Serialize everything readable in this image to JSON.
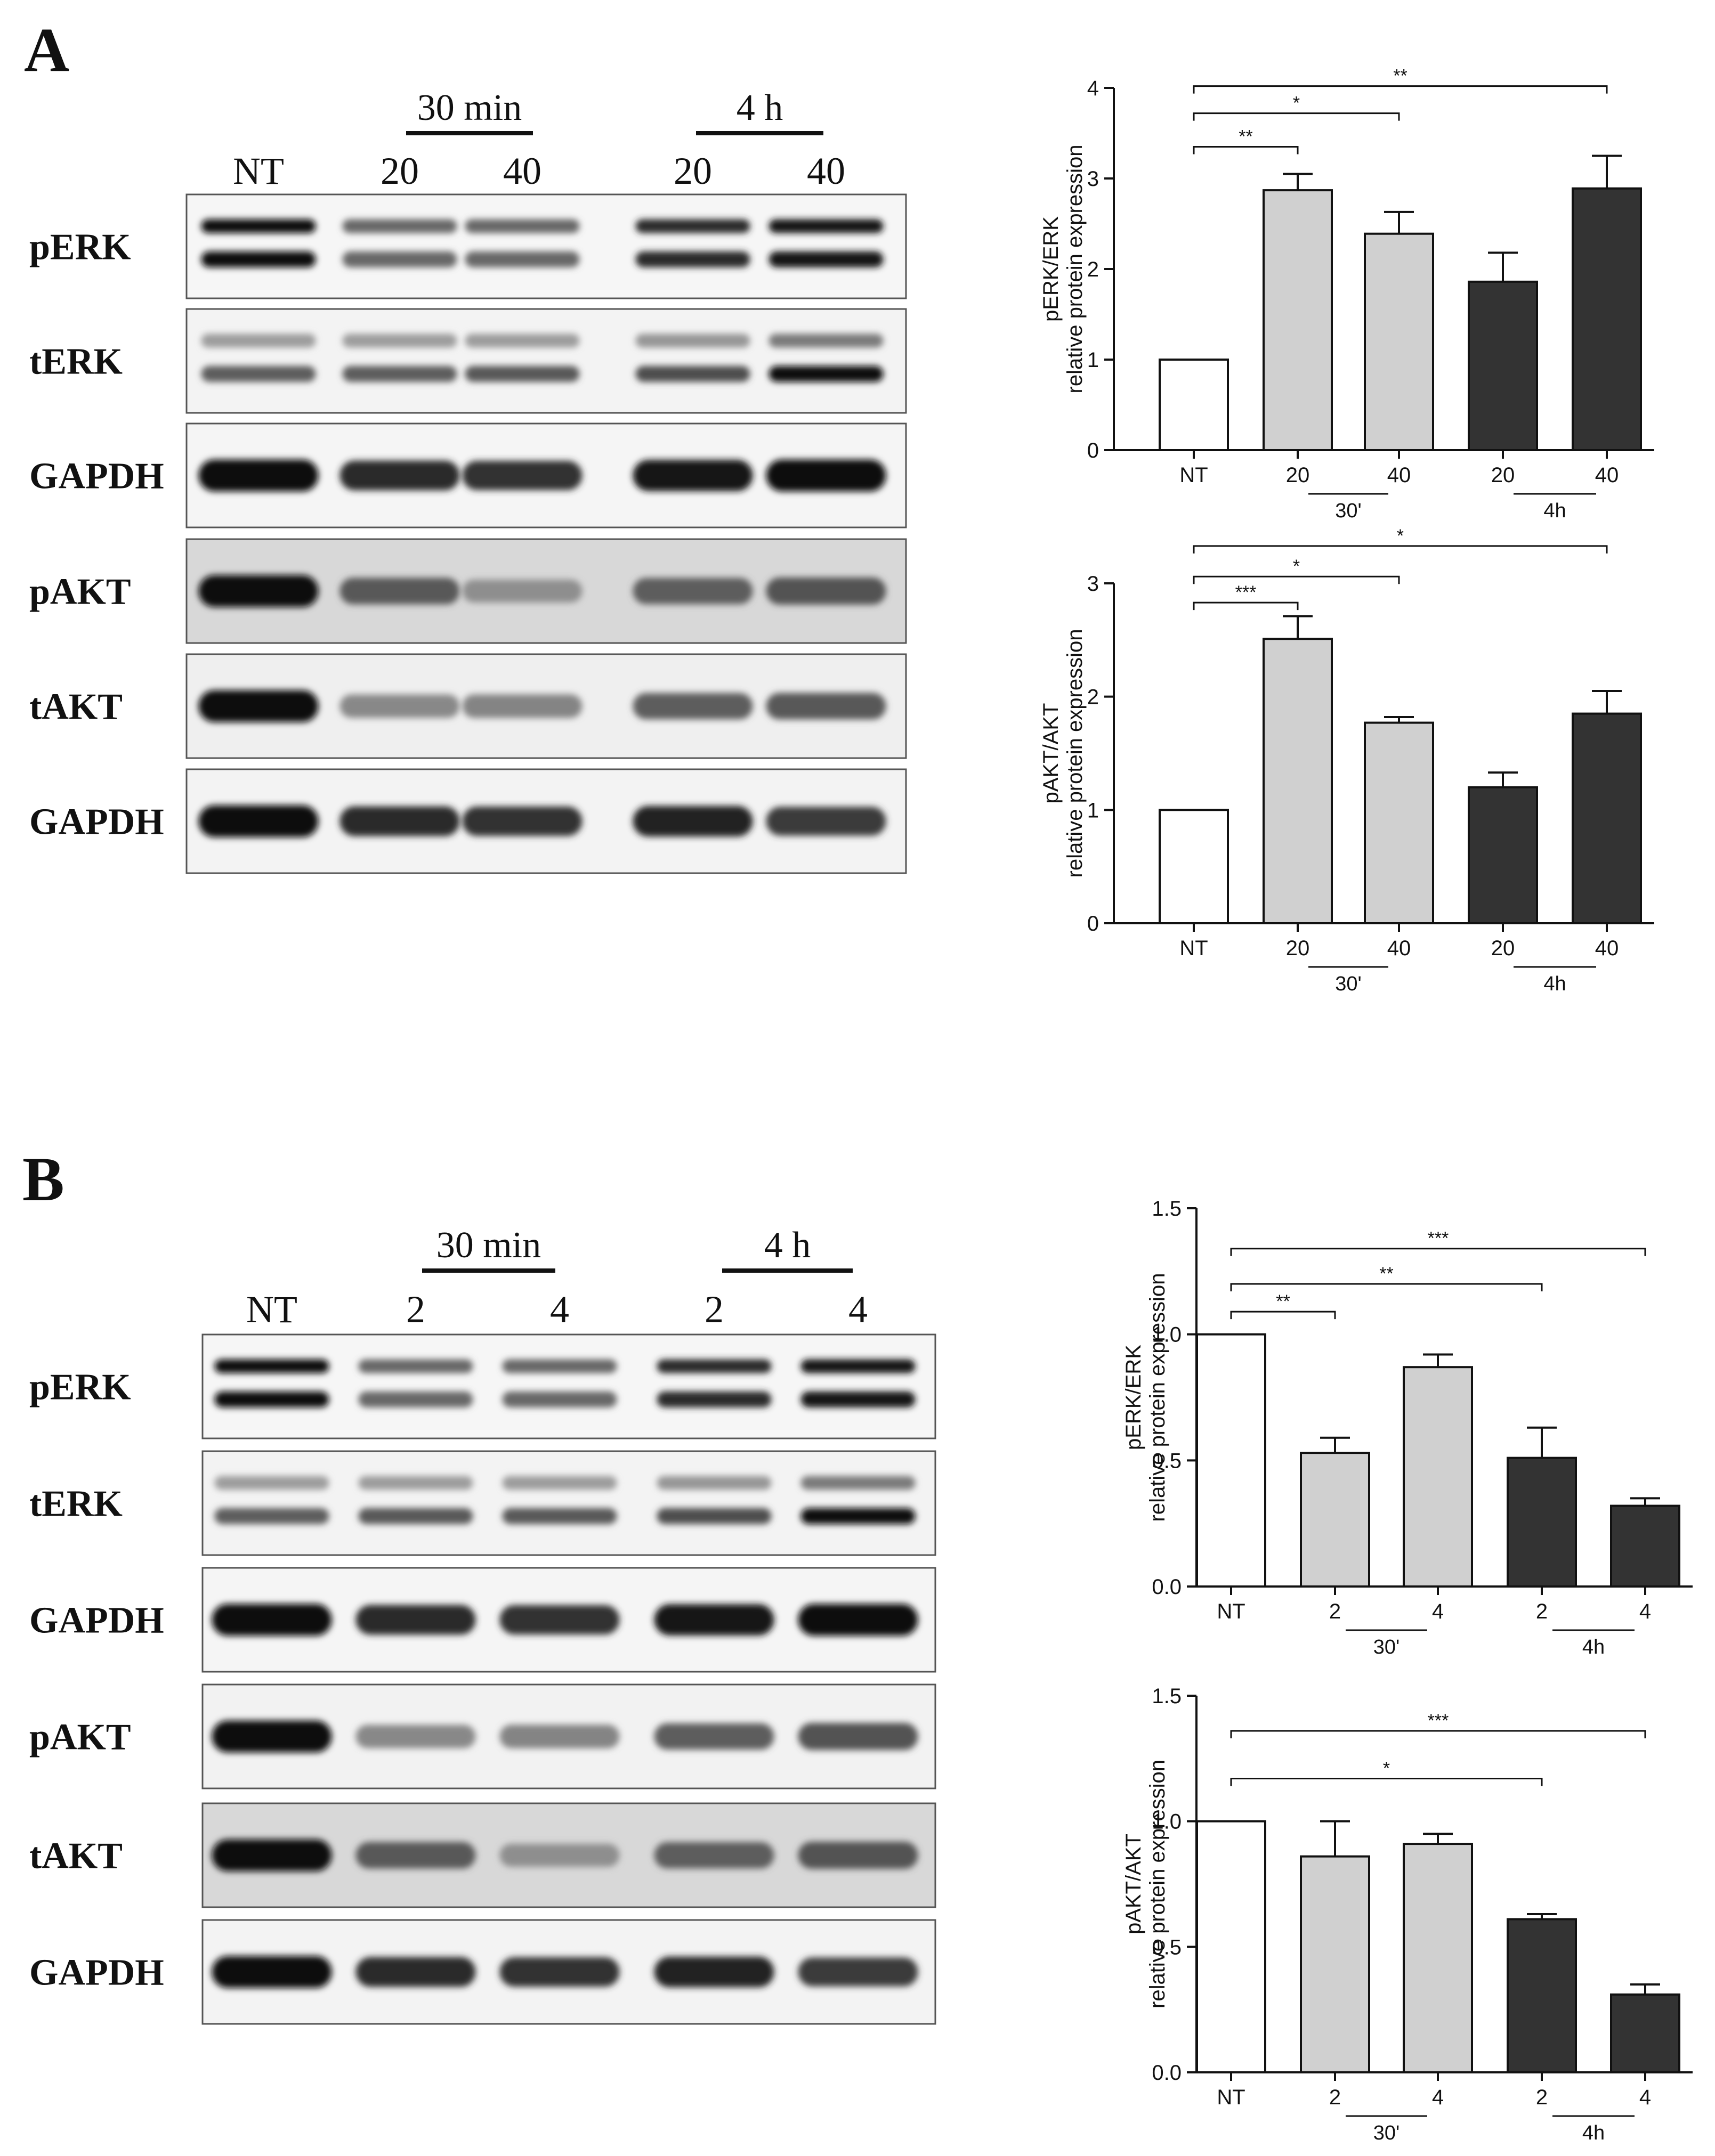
{
  "panels": [
    {
      "letter": "A",
      "blot": {
        "time_groups": [
          {
            "label": "30 min"
          },
          {
            "label": "4 h"
          }
        ],
        "lanes": [
          "NT",
          "20",
          "40",
          "20",
          "40"
        ],
        "rows": [
          {
            "label": "pERK",
            "kind": "double",
            "bg": "#f6f6f6",
            "intensity": [
              1.0,
              0.55,
              0.55,
              0.85,
              0.95
            ]
          },
          {
            "label": "tERK",
            "kind": "double-weak",
            "bg": "#f3f3f3",
            "intensity": [
              0.6,
              0.6,
              0.62,
              0.68,
              1.0
            ]
          },
          {
            "label": "GAPDH",
            "kind": "single",
            "bg": "#f5f5f5",
            "intensity": [
              1.0,
              0.85,
              0.82,
              0.95,
              1.0
            ]
          },
          {
            "label": "pAKT",
            "kind": "single",
            "bg": "#d8d8d8",
            "intensity": [
              1.0,
              0.62,
              0.35,
              0.6,
              0.65
            ]
          },
          {
            "label": "tAKT",
            "kind": "single",
            "bg": "#efefef",
            "intensity": [
              1.0,
              0.38,
              0.4,
              0.6,
              0.62
            ]
          },
          {
            "label": "GAPDH",
            "kind": "single",
            "bg": "#f3f3f3",
            "intensity": [
              1.0,
              0.85,
              0.82,
              0.9,
              0.78
            ]
          }
        ]
      },
      "charts": [
        {
          "type": "bar",
          "ylabel_line1": "pERK/ERK",
          "ylabel_line2": "relative protein expression",
          "ylim": [
            0,
            4
          ],
          "yticks": [
            "0",
            "1",
            "2",
            "3",
            "4"
          ],
          "ytick_values": [
            0,
            1,
            2,
            3,
            4
          ],
          "categories": [
            "NT",
            "20",
            "40",
            "20",
            "40"
          ],
          "values": [
            1.0,
            2.87,
            2.39,
            1.86,
            2.89
          ],
          "errors": [
            0,
            0.18,
            0.24,
            0.32,
            0.36
          ],
          "bar_colors": [
            "#ffffff",
            "#d0d0d0",
            "#d0d0d0",
            "#333333",
            "#333333"
          ],
          "group_labels": [
            {
              "label": "30'",
              "from": 1,
              "to": 2
            },
            {
              "label": "4h",
              "from": 3,
              "to": 4
            }
          ],
          "significance": [
            {
              "from": 0,
              "to": 1,
              "label": "**",
              "y": 3.35
            },
            {
              "from": 0,
              "to": 2,
              "label": "*",
              "y": 3.72
            },
            {
              "from": 0,
              "to": 4,
              "label": "**",
              "y": 4.02
            }
          ]
        },
        {
          "type": "bar",
          "ylabel_line1": "pAKT/AKT",
          "ylabel_line2": "relative protein expression",
          "ylim": [
            0,
            3
          ],
          "yticks": [
            "0",
            "1",
            "2",
            "3"
          ],
          "ytick_values": [
            0,
            1,
            2,
            3
          ],
          "categories": [
            "NT",
            "20",
            "40",
            "20",
            "40"
          ],
          "values": [
            1.0,
            2.51,
            1.77,
            1.2,
            1.85
          ],
          "errors": [
            0,
            0.2,
            0.05,
            0.13,
            0.2
          ],
          "bar_colors": [
            "#ffffff",
            "#d0d0d0",
            "#d0d0d0",
            "#333333",
            "#333333"
          ],
          "group_labels": [
            {
              "label": "30'",
              "from": 1,
              "to": 2
            },
            {
              "label": "4h",
              "from": 3,
              "to": 4
            }
          ],
          "significance": [
            {
              "from": 0,
              "to": 1,
              "label": "***",
              "y": 2.83
            },
            {
              "from": 0,
              "to": 2,
              "label": "*",
              "y": 3.06
            },
            {
              "from": 0,
              "to": 4,
              "label": "*",
              "y": 3.33
            }
          ]
        }
      ]
    },
    {
      "letter": "B",
      "blot": {
        "time_groups": [
          {
            "label": "30 min"
          },
          {
            "label": "4 h"
          }
        ],
        "lanes": [
          "NT",
          "2",
          "4",
          "2",
          "4"
        ],
        "rows": [
          {
            "label": "pERK",
            "kind": "double",
            "bg": "#f6f6f6",
            "intensity": [
              1.0,
              0.55,
              0.55,
              0.85,
              0.95
            ]
          },
          {
            "label": "tERK",
            "kind": "double-weak",
            "bg": "#f3f3f3",
            "intensity": [
              0.6,
              0.62,
              0.62,
              0.68,
              1.0
            ]
          },
          {
            "label": "GAPDH",
            "kind": "single",
            "bg": "#f5f5f5",
            "intensity": [
              1.0,
              0.85,
              0.82,
              0.95,
              1.0
            ]
          },
          {
            "label": "pAKT",
            "kind": "single",
            "bg": "#f2f2f2",
            "intensity": [
              1.0,
              0.38,
              0.4,
              0.6,
              0.65
            ]
          },
          {
            "label": "tAKT",
            "kind": "single",
            "bg": "#d8d8d8",
            "intensity": [
              1.0,
              0.62,
              0.35,
              0.6,
              0.65
            ]
          },
          {
            "label": "GAPDH",
            "kind": "single",
            "bg": "#f3f3f3",
            "intensity": [
              1.0,
              0.85,
              0.82,
              0.9,
              0.78
            ]
          }
        ]
      },
      "charts": [
        {
          "type": "bar",
          "ylabel_line1": "pERK/ERK",
          "ylabel_line2": "relative protein expression",
          "ylim": [
            0,
            1.5
          ],
          "yticks": [
            "0.0",
            "0.5",
            "1.0",
            "1.5"
          ],
          "ytick_values": [
            0,
            0.5,
            1.0,
            1.5
          ],
          "categories": [
            "NT",
            "2",
            "4",
            "2",
            "4"
          ],
          "values": [
            1.0,
            0.53,
            0.87,
            0.51,
            0.32
          ],
          "errors": [
            0,
            0.06,
            0.05,
            0.12,
            0.03
          ],
          "bar_colors": [
            "#ffffff",
            "#d0d0d0",
            "#d0d0d0",
            "#333333",
            "#333333"
          ],
          "group_labels": [
            {
              "label": "30'",
              "from": 1,
              "to": 2
            },
            {
              "label": "4h",
              "from": 3,
              "to": 4
            }
          ],
          "significance": [
            {
              "from": 0,
              "to": 1,
              "label": "**",
              "y": 1.09
            },
            {
              "from": 0,
              "to": 3,
              "label": "**",
              "y": 1.2
            },
            {
              "from": 0,
              "to": 4,
              "label": "***",
              "y": 1.34
            }
          ]
        },
        {
          "type": "bar",
          "ylabel_line1": "pAKT/AKT",
          "ylabel_line2": "relative protein expression",
          "ylim": [
            0,
            1.5
          ],
          "yticks": [
            "0.0",
            "0.5",
            "1.0",
            "1.5"
          ],
          "ytick_values": [
            0,
            0.5,
            1.0,
            1.5
          ],
          "categories": [
            "NT",
            "2",
            "4",
            "2",
            "4"
          ],
          "values": [
            1.0,
            0.86,
            0.91,
            0.61,
            0.31
          ],
          "errors": [
            0,
            0.14,
            0.04,
            0.02,
            0.04
          ],
          "bar_colors": [
            "#ffffff",
            "#d0d0d0",
            "#d0d0d0",
            "#333333",
            "#333333"
          ],
          "group_labels": [
            {
              "label": "30'",
              "from": 1,
              "to": 2
            },
            {
              "label": "4h",
              "from": 3,
              "to": 4
            }
          ],
          "significance": [
            {
              "from": 0,
              "to": 3,
              "label": "*",
              "y": 1.17
            },
            {
              "from": 0,
              "to": 4,
              "label": "***",
              "y": 1.36
            }
          ]
        }
      ]
    }
  ]
}
